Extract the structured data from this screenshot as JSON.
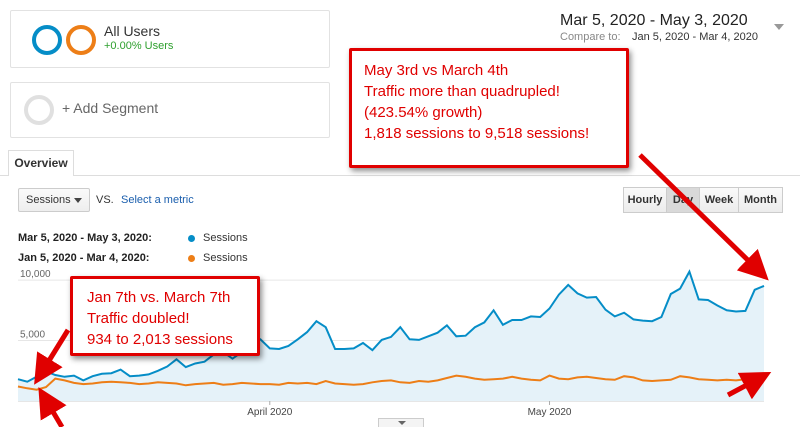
{
  "segments": [
    {
      "name": "All Users",
      "change": "+0.00% Users"
    },
    {
      "add_label": "+ Add Segment"
    }
  ],
  "date_picker": {
    "range": "Mar 5, 2020 - May 3, 2020",
    "compare_label": "Compare to:",
    "compare_range": "Jan 5, 2020 - Mar 4, 2020"
  },
  "tabs": [
    "Overview"
  ],
  "metric": {
    "selected": "Sessions",
    "vs": "VS.",
    "select_link": "Select a metric"
  },
  "time_buttons": [
    "Hourly",
    "Day",
    "Week",
    "Month"
  ],
  "legend": [
    {
      "range": "Mar 5, 2020 - May 3, 2020:",
      "name": "Sessions",
      "color": "#058dc7"
    },
    {
      "range": "Jan 5, 2020 - Mar 4, 2020:",
      "name": "Sessions",
      "color": "#ed7e17"
    }
  ],
  "annotations": [
    {
      "lines": [
        "May 3rd vs March 4th",
        "Traffic more than quadrupled!",
        "(423.54% growth)",
        "1,818 sessions to 9,518 sessions!"
      ]
    },
    {
      "lines": [
        "Jan 7th vs. March 7th",
        "Traffic doubled!",
        "934 to 2,013 sessions"
      ]
    }
  ],
  "chart_data": {
    "type": "area",
    "yticks": [
      "10,000",
      "5,000"
    ],
    "ytick_values": [
      10000,
      5000
    ],
    "ylim": [
      0,
      11000
    ],
    "xtick_labels": [
      "April 2020",
      "May 2020"
    ],
    "xtick_index": [
      27,
      57
    ],
    "series": [
      {
        "name": "Sessions",
        "color": "#058dc7",
        "values": [
          1800,
          1600,
          2013,
          2450,
          2150,
          2000,
          2100,
          1700,
          2050,
          2250,
          2300,
          2600,
          2050,
          2100,
          2200,
          2500,
          2850,
          3450,
          2800,
          3100,
          3250,
          3850,
          4050,
          3500,
          4050,
          4700,
          5100,
          4350,
          4300,
          4550,
          5100,
          5700,
          6600,
          6100,
          4300,
          4300,
          4350,
          4800,
          4200,
          5050,
          5300,
          6100,
          5100,
          5050,
          5350,
          5650,
          6250,
          5350,
          5400,
          6100,
          6500,
          7500,
          6300,
          6700,
          6700,
          7000,
          6950,
          7650,
          8800,
          9600,
          8900,
          8550,
          8600,
          7550,
          7000,
          7300,
          6750,
          6650,
          6600,
          6950,
          8850,
          9300,
          10700,
          8400,
          8350,
          7900,
          7500,
          7400,
          7450,
          9200,
          9518
        ]
      },
      {
        "name": "Sessions",
        "color": "#ed7e17",
        "values": [
          1200,
          1050,
          934,
          1150,
          1850,
          1700,
          1500,
          1400,
          1450,
          1550,
          1600,
          1550,
          1500,
          1400,
          1450,
          1550,
          1500,
          1450,
          1300,
          1400,
          1450,
          1500,
          1350,
          1400,
          1500,
          1450,
          1400,
          1400,
          1350,
          1500,
          1450,
          1500,
          1400,
          1650,
          1450,
          1400,
          1350,
          1400,
          1550,
          1650,
          1700,
          1550,
          1500,
          1650,
          1600,
          1700,
          1900,
          2100,
          2000,
          1850,
          1750,
          1800,
          1850,
          2000,
          1850,
          1750,
          1700,
          2100,
          1850,
          1800,
          1950,
          2000,
          1900,
          1800,
          1750,
          2050,
          1950,
          1700,
          1650,
          1700,
          1750,
          2050,
          1950,
          1800,
          1750,
          1700,
          1750,
          1700,
          1800,
          1800,
          1818
        ]
      }
    ],
    "grid": true
  }
}
